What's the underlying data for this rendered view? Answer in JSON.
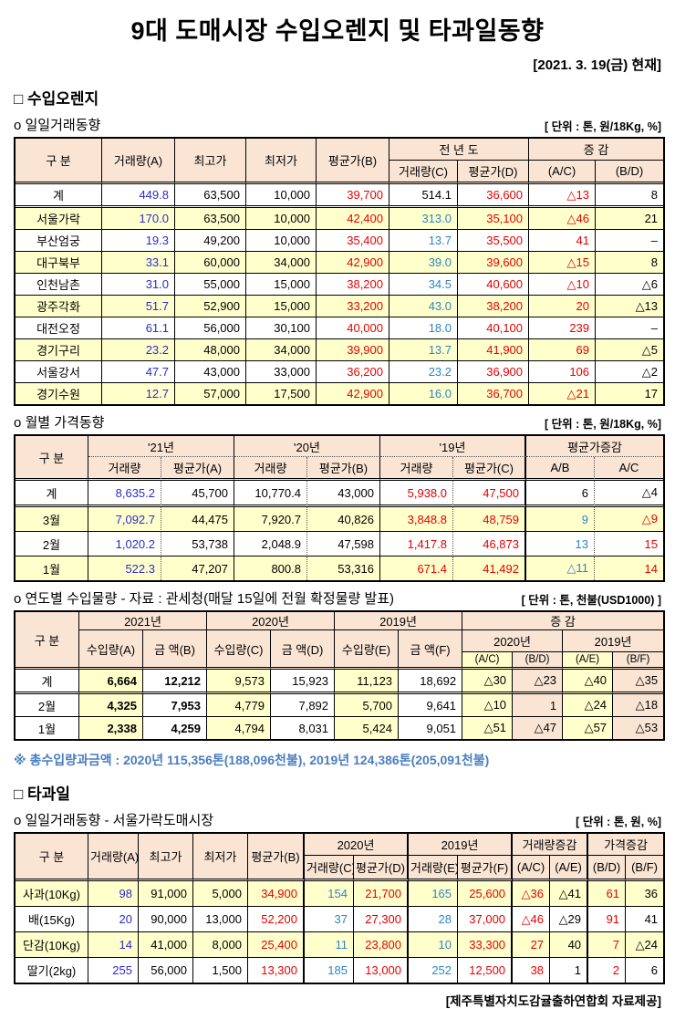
{
  "page": {
    "title": "9대 도매시장 수입오렌지 및 타과일동향",
    "date_note": "[2021. 3. 19(금) 현재]",
    "footer": "[제주특별자치도감귤출하연합회 자료제공]"
  },
  "colors": {
    "header_bg": "#FAE5D5",
    "stripe_bg": "#FFFFCC",
    "blue": "#2B2BCC",
    "teal": "#2E86C1",
    "red": "#E60000",
    "note_blue": "#4A7EBD"
  },
  "sections": {
    "orange": {
      "heading": "□ 수입오렌지",
      "daily": {
        "subtitle": "o 일일거래동향",
        "unit": "[ 단위 : 톤, 원/18Kg, %]",
        "h1": [
          "구  분",
          "거래량(A)",
          "최고가",
          "최저가",
          "평균가(B)",
          "전 년 도",
          "증  감"
        ],
        "h2": [
          "거래량(C)",
          "평균가(D)",
          "(A/C)",
          "(B/D)"
        ],
        "rows": [
          [
            "계",
            "449.8",
            "63,500",
            "10,000",
            "39,700",
            "514.1",
            "36,600",
            "△13",
            "8"
          ],
          [
            "서울가락",
            "170.0",
            "63,500",
            "10,000",
            "42,400",
            "313.0",
            "35,100",
            "△46",
            "21"
          ],
          [
            "부산엄궁",
            "19.3",
            "49,200",
            "10,000",
            "35,400",
            "13.7",
            "35,500",
            "41",
            "–"
          ],
          [
            "대구북부",
            "33.1",
            "60,000",
            "34,000",
            "42,900",
            "39.0",
            "39,600",
            "△15",
            "8"
          ],
          [
            "인천남촌",
            "31.0",
            "55,000",
            "15,000",
            "38,200",
            "34.5",
            "40,600",
            "△10",
            "△6"
          ],
          [
            "광주각화",
            "51.7",
            "52,900",
            "15,000",
            "33,200",
            "43.0",
            "38,200",
            "20",
            "△13"
          ],
          [
            "대전오정",
            "61.1",
            "56,000",
            "30,100",
            "40,000",
            "18.0",
            "40,100",
            "239",
            "–"
          ],
          [
            "경기구리",
            "23.2",
            "48,000",
            "34,000",
            "39,900",
            "13.7",
            "41,900",
            "69",
            "△5"
          ],
          [
            "서울강서",
            "47.7",
            "43,000",
            "33,000",
            "36,200",
            "23.2",
            "36,900",
            "106",
            "△2"
          ],
          [
            "경기수원",
            "12.7",
            "57,000",
            "17,500",
            "42,900",
            "16.0",
            "36,700",
            "△21",
            "17"
          ]
        ]
      },
      "monthly": {
        "subtitle": "o 월별 가격동향",
        "unit": "[ 단위 : 톤, 원/18Kg, %]",
        "h1": [
          "구  분",
          "'21년",
          "'20년",
          "'19년",
          "평균가증감"
        ],
        "h2": [
          "거래량",
          "평균가(A)",
          "거래량",
          "평균가(B)",
          "거래량",
          "평균가(C)",
          "A/B",
          "A/C"
        ],
        "rows": [
          [
            "계",
            "8,635.2",
            "45,700",
            "10,770.4",
            "43,000",
            "5,938.0",
            "47,500",
            "6",
            "△4"
          ],
          [
            "3월",
            "7,092.7",
            "44,475",
            "7,920.7",
            "40,826",
            "3,848.8",
            "48,759",
            "9",
            "△9"
          ],
          [
            "2월",
            "1,020.2",
            "53,738",
            "2,048.9",
            "47,598",
            "1,417.8",
            "46,873",
            "13",
            "15"
          ],
          [
            "1월",
            "522.3",
            "47,207",
            "800.8",
            "53,316",
            "671.4",
            "41,492",
            "△11",
            "14"
          ]
        ]
      },
      "yearly": {
        "subtitle": "o 연도별 수입물량 - 자료 : 관세청(매달 15일에 전월 확정물량 발표)",
        "unit": "[ 단위 : 톤, 천불(USD1000) ]",
        "h1": [
          "구 분",
          "2021년",
          "2020년",
          "2019년",
          "증   감"
        ],
        "h2": [
          "수입량(A)",
          "금 액(B)",
          "수입량(C)",
          "금 액(D)",
          "수입량(E)",
          "금 액(F)",
          "2020년",
          "2019년"
        ],
        "h3": [
          "(A/C)",
          "(B/D)",
          "(A/E)",
          "(B/F)"
        ],
        "rows": [
          [
            "계",
            "6,664",
            "12,212",
            "9,573",
            "15,923",
            "11,123",
            "18,692",
            "△30",
            "△23",
            "△40",
            "△35"
          ],
          [
            "2월",
            "4,325",
            "7,953",
            "4,779",
            "7,892",
            "5,700",
            "9,641",
            "△10",
            "1",
            "△24",
            "△18"
          ],
          [
            "1월",
            "2,338",
            "4,259",
            "4,794",
            "8,031",
            "5,424",
            "9,051",
            "△51",
            "△47",
            "△57",
            "△53"
          ]
        ]
      },
      "note": "※ 총수입량과금액 : 2020년 115,356톤(188,096천불),  2019년 124,386톤(205,091천불)"
    },
    "other_fruit": {
      "heading": "□ 타과일",
      "daily": {
        "subtitle": "o 일일거래동향 - 서울가락도매시장",
        "unit": "[ 단위 : 톤, 원, %]",
        "h1": [
          "구 분",
          "거래량(A)",
          "최고가",
          "최저가",
          "평균가(B)",
          "2020년",
          "2019년",
          "거래량증감",
          "가격증감"
        ],
        "h2": [
          "거래량(C)",
          "평균가(D)",
          "거래량(E)",
          "평균가(F)",
          "(A/C)",
          "(A/E)",
          "(B/D)",
          "(B/F)"
        ],
        "rows": [
          [
            "사과(10Kg)",
            "98",
            "91,000",
            "5,000",
            "34,900",
            "154",
            "21,700",
            "165",
            "25,600",
            "△36",
            "△41",
            "61",
            "36"
          ],
          [
            "배(15Kg)",
            "20",
            "90,000",
            "13,000",
            "52,200",
            "37",
            "27,300",
            "28",
            "37,000",
            "△46",
            "△29",
            "91",
            "41"
          ],
          [
            "단감(10Kg)",
            "14",
            "41,000",
            "8,000",
            "25,400",
            "11",
            "23,800",
            "10",
            "33,300",
            "27",
            "40",
            "7",
            "△24"
          ],
          [
            "딸기(2kg)",
            "255",
            "56,000",
            "1,500",
            "13,300",
            "185",
            "13,000",
            "252",
            "12,500",
            "38",
            "1",
            "2",
            "6"
          ]
        ]
      }
    }
  }
}
